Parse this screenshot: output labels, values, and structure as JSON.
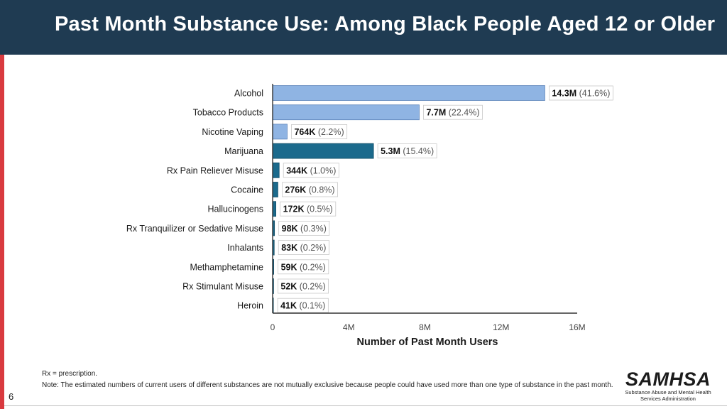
{
  "slide": {
    "title": "Past Month Substance Use: Among Black People Aged 12 or Older",
    "page_number": "6",
    "footnote": "Rx = prescription.",
    "note": "Note: The estimated numbers of current users of different substances are not mutually exclusive because people could have used more than one type of substance in the past month.",
    "logo_word": "SAMHSA",
    "logo_sub_1": "Substance Abuse and Mental Health",
    "logo_sub_2": "Services Administration"
  },
  "colors": {
    "header_bg": "#1f3b52",
    "accent_red": "#d93a3f",
    "bar_light": "#8fb4e3",
    "bar_light_edge": "#5a82b8",
    "bar_dark": "#1b6a8c",
    "bar_dark_edge": "#124d66"
  },
  "chart_data": {
    "type": "bar",
    "orientation": "horizontal",
    "title": "",
    "xlabel": "Number of Past Month Users",
    "ylabel": "",
    "xlim": [
      0,
      16000000
    ],
    "x_ticks": [
      0,
      4000000,
      8000000,
      12000000,
      16000000
    ],
    "x_tick_labels": [
      "0",
      "4M",
      "8M",
      "12M",
      "16M"
    ],
    "grid": false,
    "categories": [
      "Alcohol",
      "Tobacco Products",
      "Nicotine Vaping",
      "Marijuana",
      "Rx Pain Reliever Misuse",
      "Cocaine",
      "Hallucinogens",
      "Rx Tranquilizer or Sedative Misuse",
      "Inhalants",
      "Methamphetamine",
      "Rx Stimulant Misuse",
      "Heroin"
    ],
    "values": [
      14300000,
      7700000,
      764000,
      5300000,
      344000,
      276000,
      172000,
      98000,
      83000,
      59000,
      52000,
      41000
    ],
    "value_labels": [
      "14.3M",
      "7.7M",
      "764K",
      "5.3M",
      "344K",
      "276K",
      "172K",
      "98K",
      "83K",
      "59K",
      "52K",
      "41K"
    ],
    "percent_labels": [
      "(41.6%)",
      "(22.4%)",
      "(2.2%)",
      "(15.4%)",
      "(1.0%)",
      "(0.8%)",
      "(0.5%)",
      "(0.3%)",
      "(0.2%)",
      "(0.2%)",
      "(0.2%)",
      "(0.1%)"
    ],
    "bar_color_group": [
      "light",
      "light",
      "light",
      "dark",
      "dark",
      "dark",
      "dark",
      "dark",
      "dark",
      "dark",
      "dark",
      "dark"
    ]
  }
}
